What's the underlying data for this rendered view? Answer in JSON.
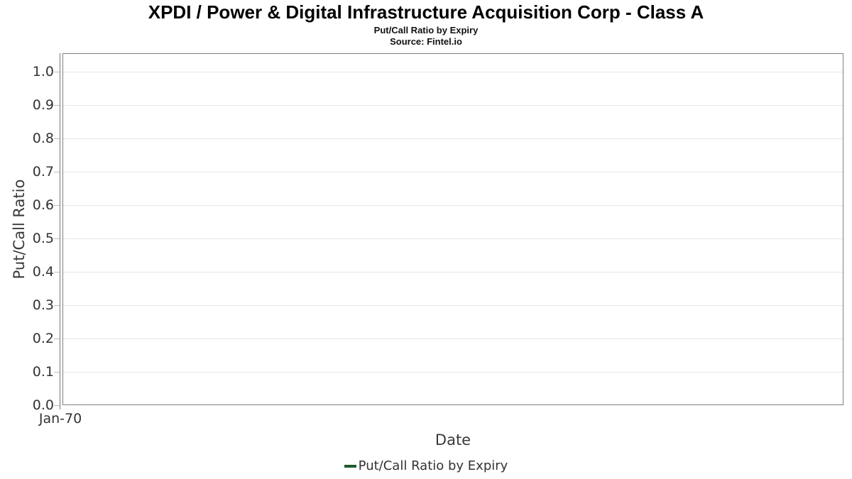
{
  "chart_data": {
    "type": "line",
    "title": "XPDI / Power & Digital Infrastructure Acquisition Corp - Class A",
    "subtitle": "Put/Call Ratio by Expiry",
    "source": "Source: Fintel.io",
    "xlabel": "Date",
    "ylabel": "Put/Call Ratio",
    "ylim": [
      0.0,
      1.055
    ],
    "grid": true,
    "yticks": [
      {
        "label": "0.0",
        "value": 0.0
      },
      {
        "label": "0.1",
        "value": 0.1
      },
      {
        "label": "0.2",
        "value": 0.2
      },
      {
        "label": "0.3",
        "value": 0.3
      },
      {
        "label": "0.4",
        "value": 0.4
      },
      {
        "label": "0.5",
        "value": 0.5
      },
      {
        "label": "0.6",
        "value": 0.6
      },
      {
        "label": "0.7",
        "value": 0.7
      },
      {
        "label": "0.8",
        "value": 0.8
      },
      {
        "label": "0.9",
        "value": 0.9
      },
      {
        "label": "1.0",
        "value": 1.0
      }
    ],
    "xticks": [
      {
        "label": "Jan-70",
        "position": 0
      }
    ],
    "legend": {
      "position": "bottom",
      "entries": [
        {
          "label": "Put/Call Ratio by Expiry",
          "color": "#1e5b2b"
        }
      ]
    },
    "series": [
      {
        "name": "Put/Call Ratio by Expiry",
        "color": "#1e5b2b",
        "x": [],
        "y": []
      }
    ]
  },
  "colors": {
    "plot_border": "#7f7f7f",
    "axis_line": "#777777",
    "gridline": "#e6e6e6",
    "tick_mark": "#bdbdbd",
    "tick_text": "#333333",
    "axis_title_text": "#3a3a3a",
    "title_text": "#000000",
    "series_green": "#1e5b2b",
    "background": "#ffffff"
  }
}
